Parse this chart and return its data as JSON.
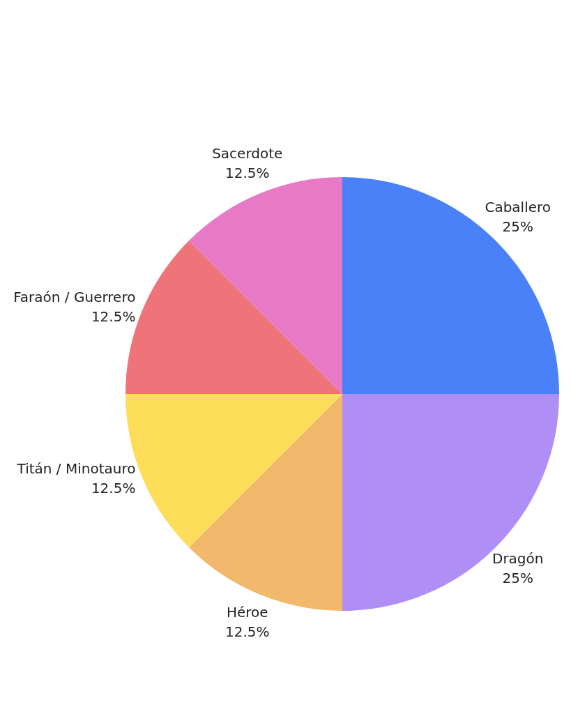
{
  "chart_data": {
    "type": "pie",
    "categories": [
      "Caballero",
      "Dragón",
      "Héroe",
      "Titán / Minotauro",
      "Faraón / Guerrero",
      "Sacerdote"
    ],
    "values": [
      25,
      25,
      12.5,
      12.5,
      12.5,
      12.5
    ],
    "colors": [
      "#4a80f8",
      "#af8ef6",
      "#f2b86c",
      "#fedd5a",
      "#ee7479",
      "#e779c6"
    ],
    "value_labels": [
      "25%",
      "25%",
      "12.5%",
      "12.5%",
      "12.5%",
      "12.5%"
    ],
    "legend": false
  }
}
